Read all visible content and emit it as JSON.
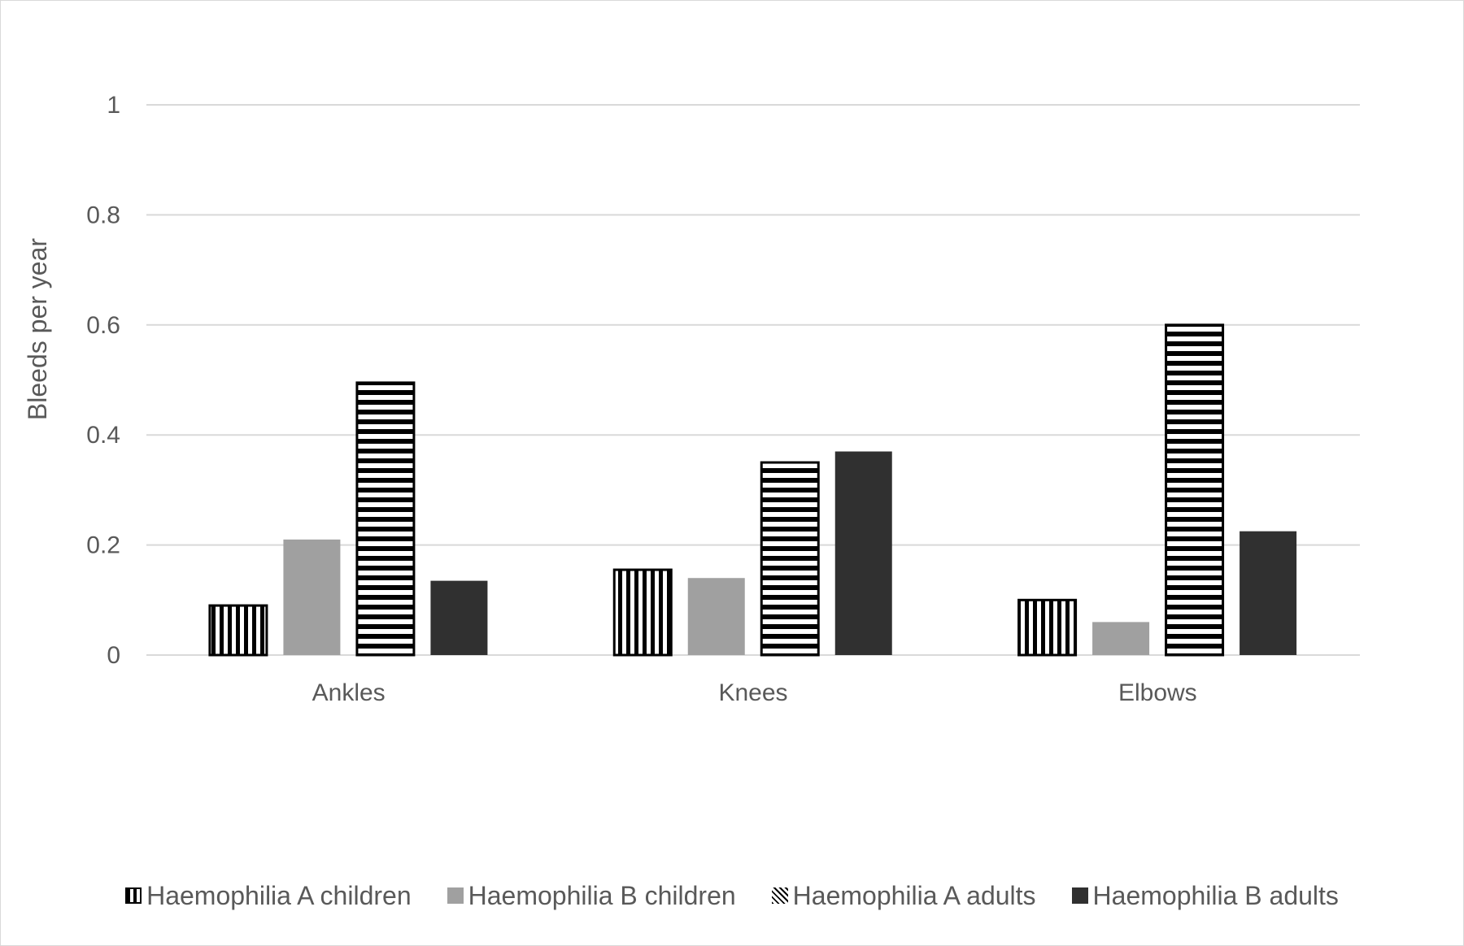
{
  "chart_data": {
    "type": "bar",
    "title": "",
    "xlabel": "",
    "ylabel": "Bleeds per year",
    "ylim": [
      0,
      1
    ],
    "yticks": [
      "0",
      "0.2",
      "0.4",
      "0.6",
      "0.8",
      "1"
    ],
    "grid": true,
    "legend_position": "bottom",
    "categories": [
      "Ankles",
      "Knees",
      "Elbows"
    ],
    "series": [
      {
        "name": "Haemophilia A children",
        "values": [
          0.09,
          0.155,
          0.1
        ],
        "pattern": "vertical-stripes",
        "color": "#000000"
      },
      {
        "name": "Haemophilia B children",
        "values": [
          0.21,
          0.14,
          0.06
        ],
        "pattern": "solid",
        "color": "#a0a0a0"
      },
      {
        "name": "Haemophilia A adults",
        "values": [
          0.495,
          0.35,
          0.6
        ],
        "pattern": "horizontal-stripes",
        "color": "#000000"
      },
      {
        "name": "Haemophilia B adults",
        "values": [
          0.135,
          0.37,
          0.225
        ],
        "pattern": "solid",
        "color": "#303030"
      }
    ]
  }
}
